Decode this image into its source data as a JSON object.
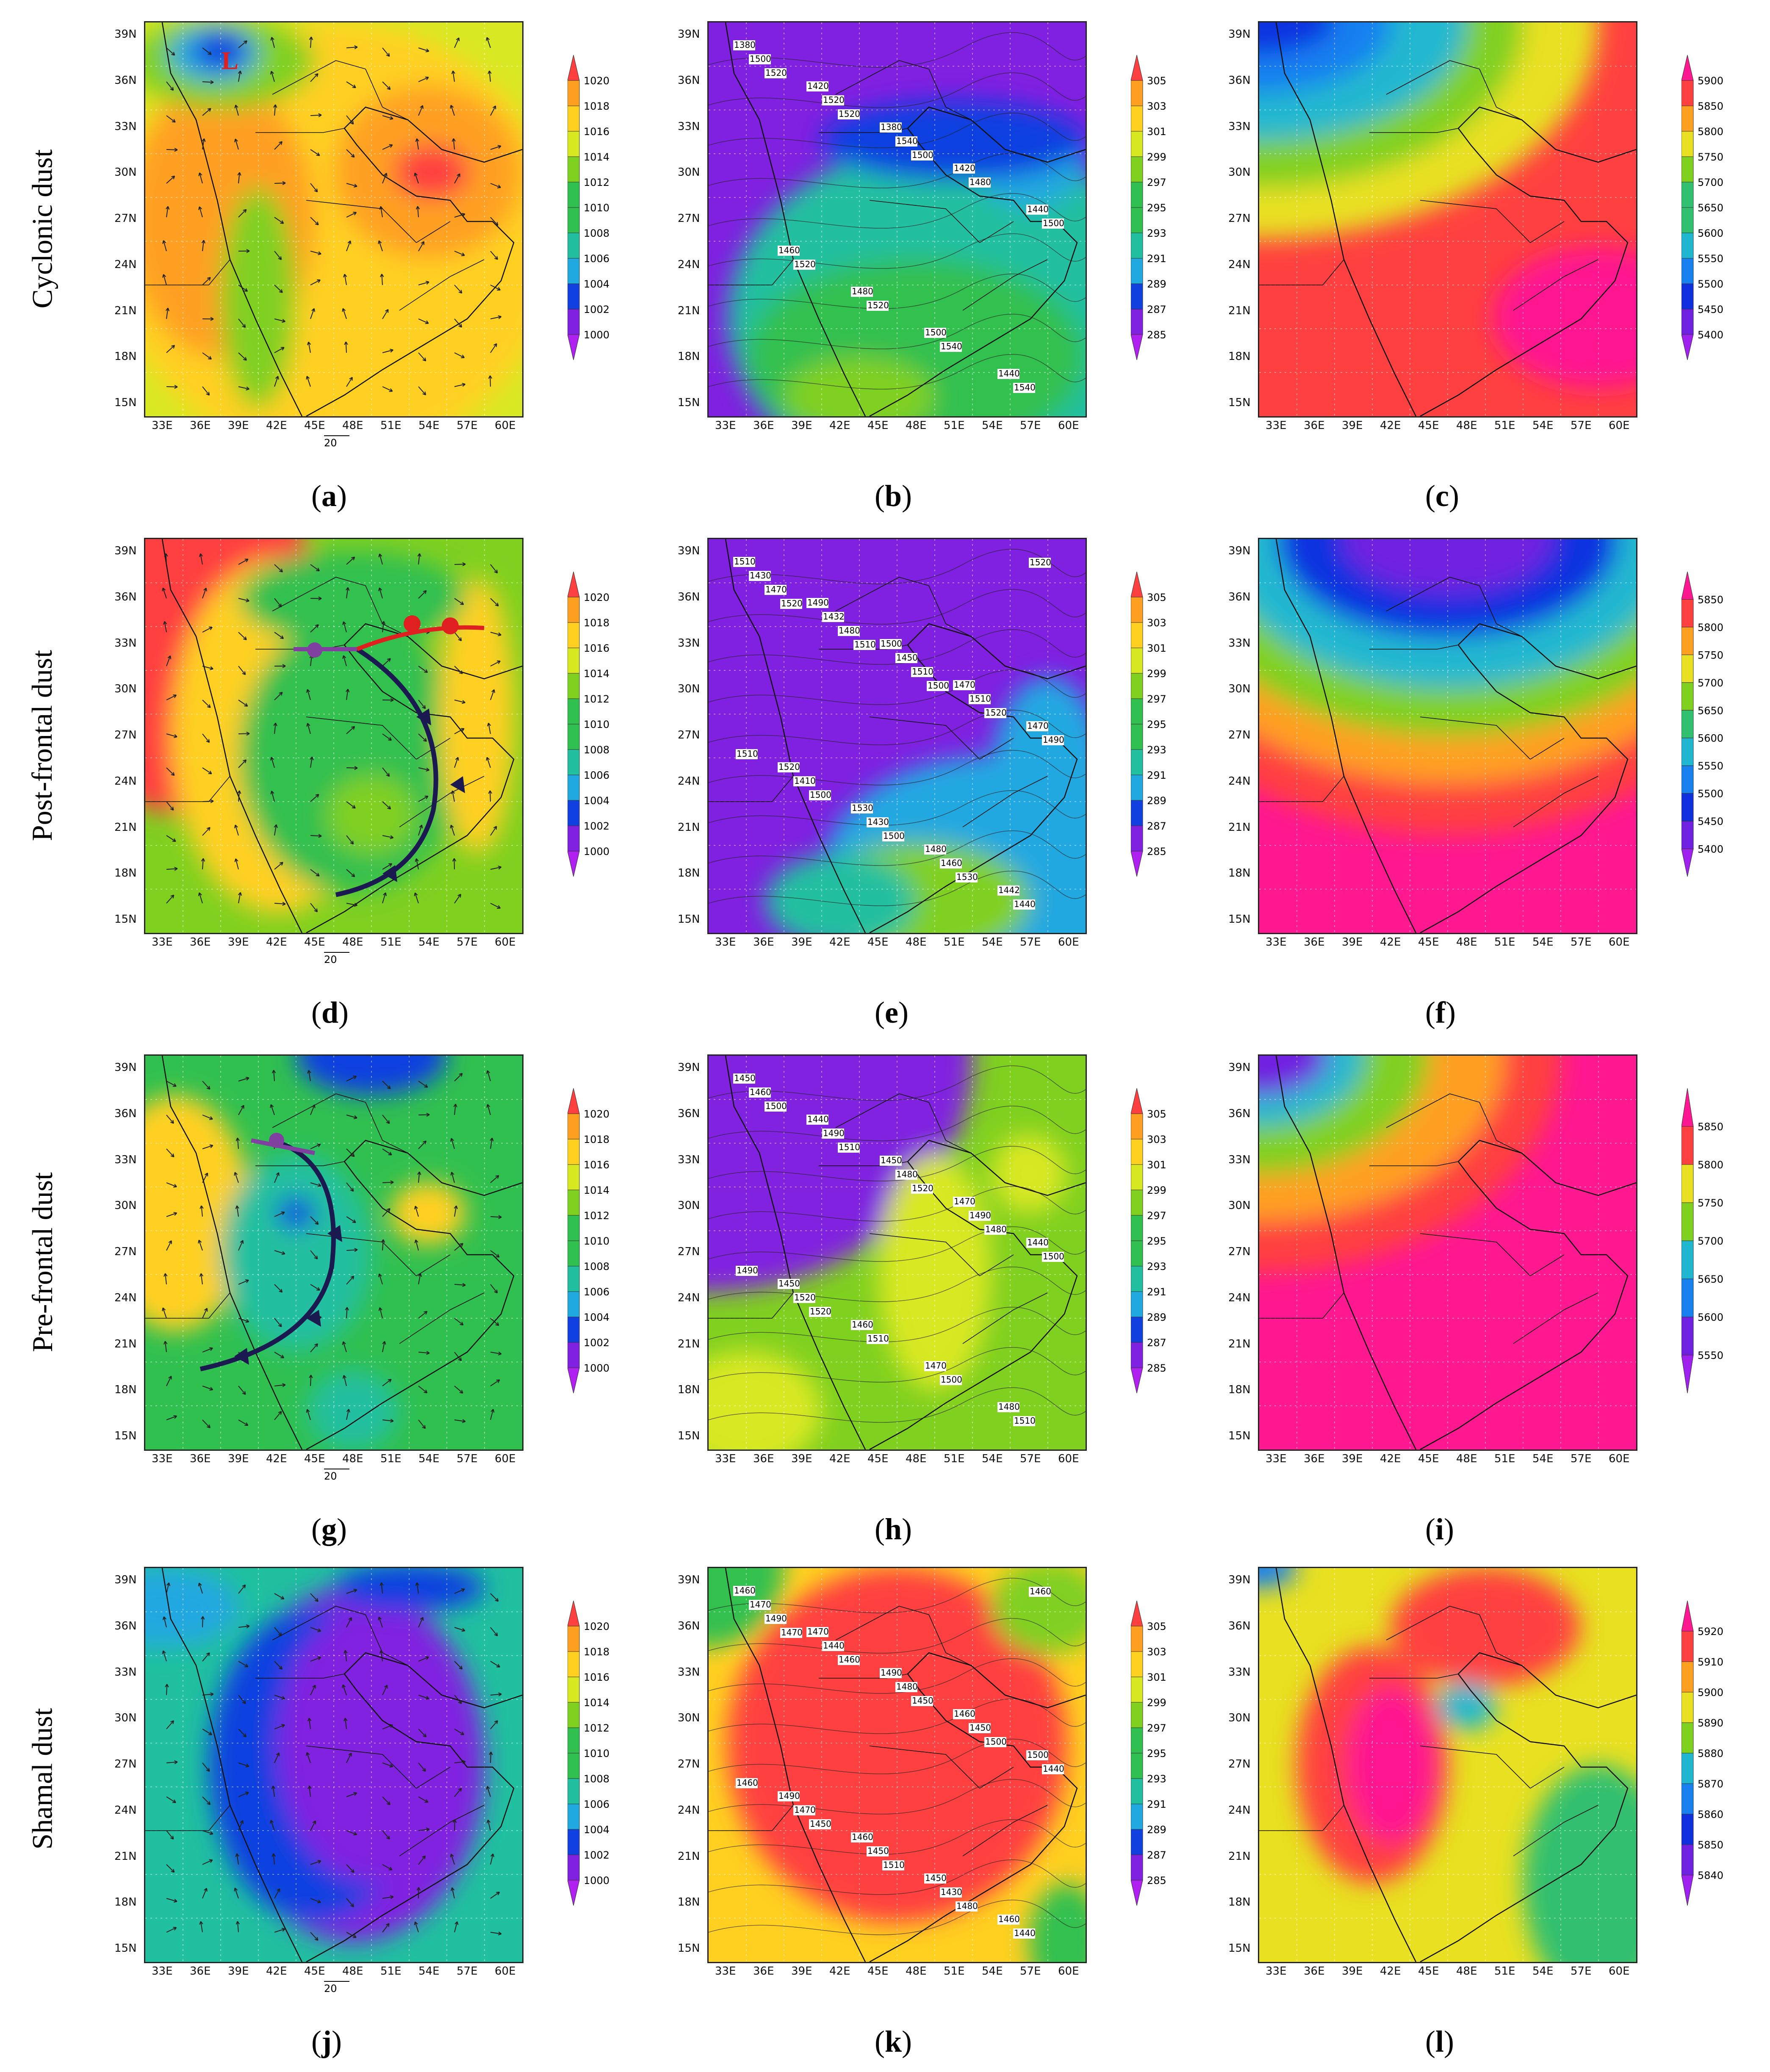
{
  "rows": [
    {
      "label": "Cyclonic dust"
    },
    {
      "label": "Post-frontal dust"
    },
    {
      "label": "Pre-frontal dust"
    },
    {
      "label": "Shamal dust"
    }
  ],
  "axes": {
    "lon_ticks": [
      "33E",
      "36E",
      "39E",
      "42E",
      "45E",
      "48E",
      "51E",
      "54E",
      "57E",
      "60E"
    ],
    "lat_ticks": [
      "39N",
      "36N",
      "33N",
      "30N",
      "27N",
      "24N",
      "21N",
      "18N",
      "15N"
    ]
  },
  "vector_ref": "20",
  "colorbars": {
    "slp": [
      "1020",
      "1018",
      "1016",
      "1014",
      "1012",
      "1010",
      "1008",
      "1006",
      "1004",
      "1002",
      "1000"
    ],
    "temp": [
      "305",
      "303",
      "301",
      "299",
      "297",
      "295",
      "293",
      "291",
      "289",
      "287",
      "285"
    ],
    "gph_c": [
      "5900",
      "5850",
      "5800",
      "5750",
      "5700",
      "5650",
      "5600",
      "5550",
      "5500",
      "5450",
      "5400"
    ],
    "gph_f": [
      "5850",
      "5800",
      "5750",
      "5700",
      "5650",
      "5600",
      "5550",
      "5500",
      "5450",
      "5400"
    ],
    "gph_i": [
      "5850",
      "5800",
      "5750",
      "5700",
      "5650",
      "5600",
      "5550"
    ],
    "gph_l": [
      "5920",
      "5910",
      "5900",
      "5890",
      "5880",
      "5870",
      "5860",
      "5850",
      "5840"
    ]
  },
  "colors": {
    "slp": [
      "#ff4040",
      "#ffa020",
      "#ffd020",
      "#d8e820",
      "#80d020",
      "#30c050",
      "#20c0a0",
      "#20a8e0",
      "#1040e0",
      "#8020e0",
      "#b020f0"
    ],
    "temp": [
      "#ff4040",
      "#ffa020",
      "#ffd020",
      "#d8e820",
      "#80d020",
      "#30c050",
      "#20c0a0",
      "#20a8e0",
      "#1040e0",
      "#8020e0",
      "#b020f0"
    ],
    "gph": [
      "#ff1890",
      "#ff4040",
      "#ffa020",
      "#e8e020",
      "#80d020",
      "#30c070",
      "#20b8d0",
      "#1880f0",
      "#1030e0",
      "#7020e0",
      "#a020f0"
    ]
  },
  "panels": [
    {
      "id": "a",
      "caption": "a",
      "type": "slp",
      "contour_labels": [],
      "marker": "L"
    },
    {
      "id": "b",
      "caption": "b",
      "type": "temp",
      "contour_labels": [
        "1380",
        "1420",
        "1380",
        "1420",
        "1440",
        "1460",
        "1480",
        "1500",
        "1440",
        "1500",
        "1520",
        "1540",
        "1480",
        "1500",
        "1520",
        "1520",
        "1540",
        "1540",
        "1520",
        "1520",
        "1500"
      ]
    },
    {
      "id": "c",
      "caption": "c",
      "type": "gph_c",
      "contour_labels": []
    },
    {
      "id": "d",
      "caption": "d",
      "type": "slp",
      "contour_labels": []
    },
    {
      "id": "e",
      "caption": "e",
      "type": "temp",
      "contour_labels": [
        "1510",
        "1490",
        "1500",
        "1470",
        "1470",
        "1520",
        "1530",
        "1480",
        "1442",
        "1430",
        "1432",
        "1450",
        "1510",
        "1490",
        "1410",
        "1430",
        "1460",
        "1440",
        "1470",
        "1480",
        "1510",
        "1520",
        "1510",
        "1500",
        "1500",
        "1530",
        "1520",
        "1520",
        "1510",
        "1500"
      ]
    },
    {
      "id": "f",
      "caption": "f",
      "type": "gph_f",
      "contour_labels": []
    },
    {
      "id": "g",
      "caption": "g",
      "type": "slp",
      "contour_labels": []
    },
    {
      "id": "h",
      "caption": "h",
      "type": "temp",
      "contour_labels": [
        "1450",
        "1440",
        "1450",
        "1470",
        "1440",
        "1450",
        "1460",
        "1470",
        "1480",
        "1460",
        "1490",
        "1480",
        "1490",
        "1500",
        "1520",
        "1510",
        "1500",
        "1510",
        "1500",
        "1510",
        "1520",
        "1480",
        "1490",
        "1520"
      ]
    },
    {
      "id": "i",
      "caption": "i",
      "type": "gph_i",
      "contour_labels": []
    },
    {
      "id": "j",
      "caption": "j",
      "type": "slp",
      "contour_labels": []
    },
    {
      "id": "k",
      "caption": "k",
      "type": "temp",
      "contour_labels": [
        "1460",
        "1470",
        "1490",
        "1460",
        "1500",
        "1490",
        "1460",
        "1450",
        "1460",
        "1470",
        "1440",
        "1480",
        "1450",
        "1440",
        "1470",
        "1450",
        "1430",
        "1440",
        "1490",
        "1460",
        "1450",
        "1500",
        "1460",
        "1450",
        "1510",
        "1480",
        "1460",
        "1470"
      ]
    },
    {
      "id": "l",
      "caption": "l",
      "type": "gph_l",
      "contour_labels": []
    }
  ]
}
